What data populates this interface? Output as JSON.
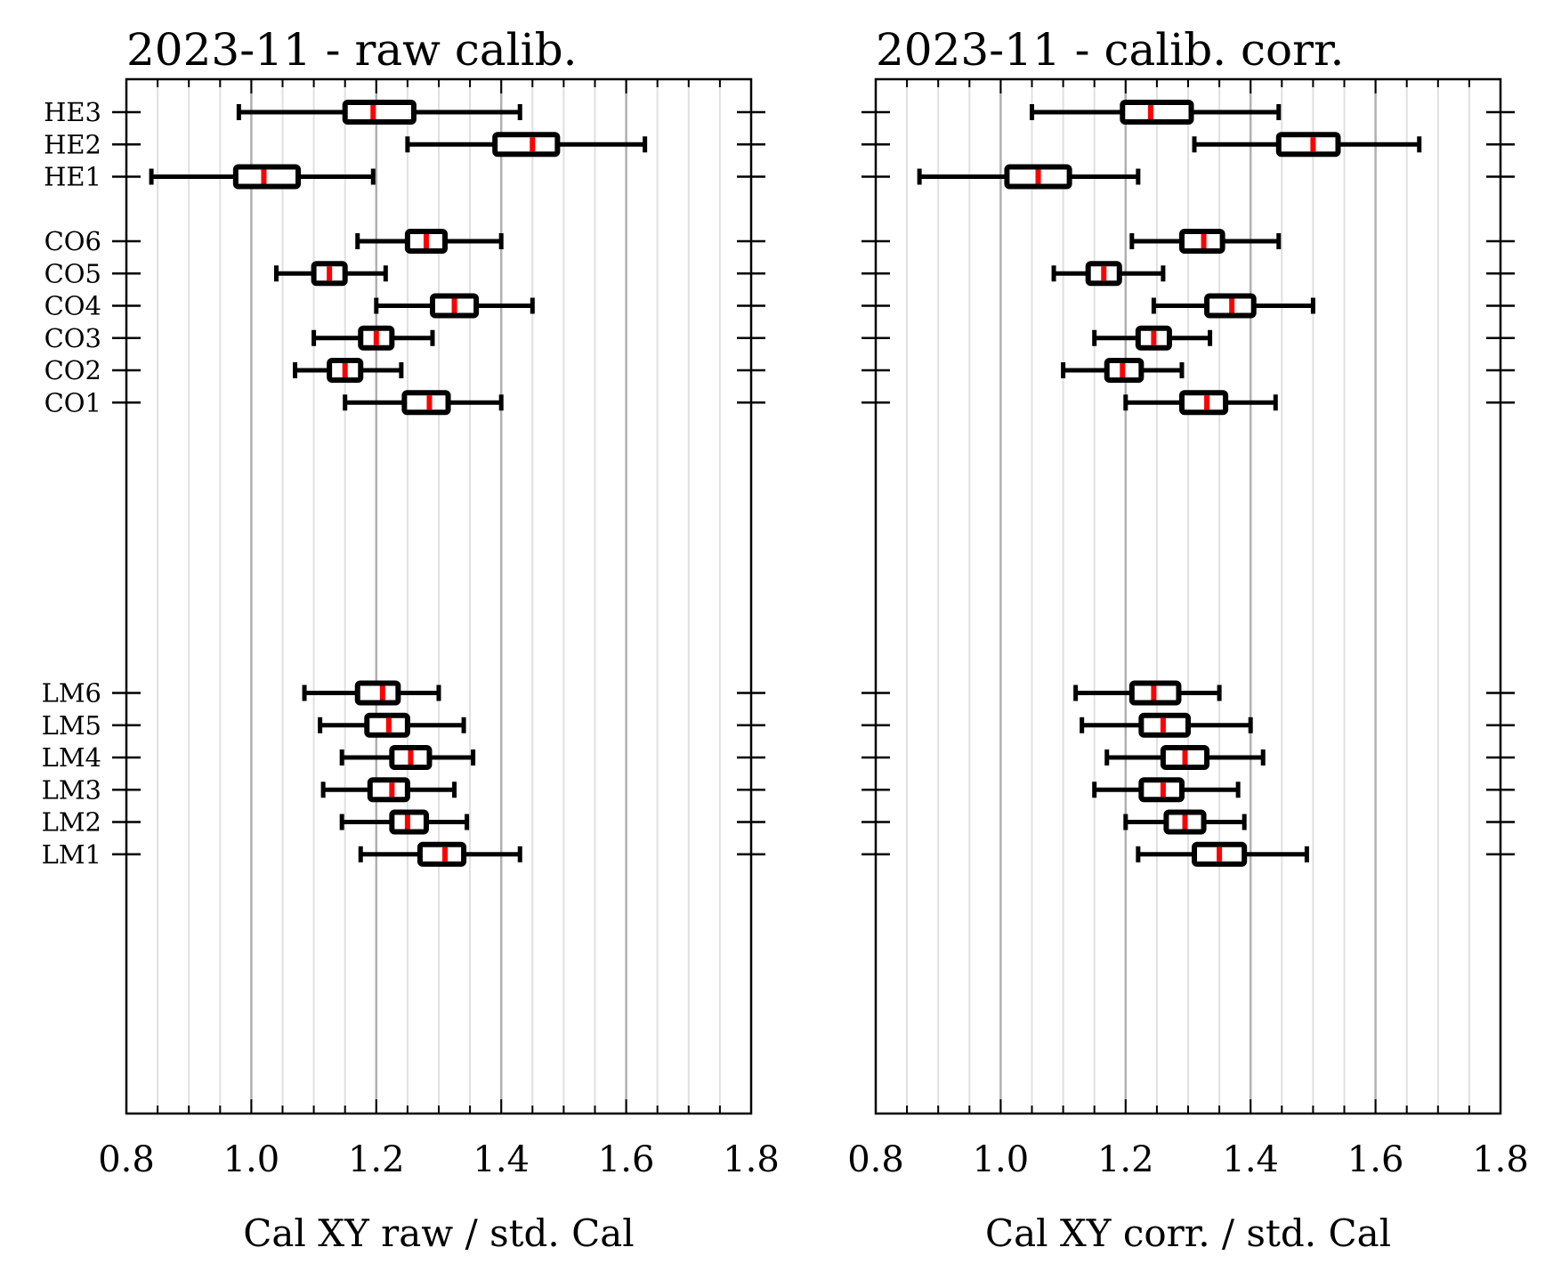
{
  "chart_data": [
    {
      "type": "boxplot",
      "orientation": "horizontal",
      "title": "2023-11 - raw calib.",
      "xlabel": "Cal XY raw / std. Cal",
      "xlim": [
        0.8,
        1.8
      ],
      "xticks": [
        "0.8",
        "1.0",
        "1.2",
        "1.4",
        "1.6",
        "1.8"
      ],
      "grid": true,
      "categories": [
        {
          "label": "HE3",
          "row": 0,
          "whislo": 0.98,
          "q1": 1.15,
          "med": 1.195,
          "q3": 1.26,
          "whishi": 1.43
        },
        {
          "label": "HE2",
          "row": 1,
          "whislo": 1.25,
          "q1": 1.39,
          "med": 1.45,
          "q3": 1.49,
          "whishi": 1.63
        },
        {
          "label": "HE1",
          "row": 2,
          "whislo": 0.84,
          "q1": 0.975,
          "med": 1.02,
          "q3": 1.075,
          "whishi": 1.195
        },
        {
          "label": "CO6",
          "row": 4,
          "whislo": 1.17,
          "q1": 1.25,
          "med": 1.28,
          "q3": 1.31,
          "whishi": 1.4
        },
        {
          "label": "CO5",
          "row": 5,
          "whislo": 1.04,
          "q1": 1.1,
          "med": 1.125,
          "q3": 1.15,
          "whishi": 1.215
        },
        {
          "label": "CO4",
          "row": 6,
          "whislo": 1.2,
          "q1": 1.29,
          "med": 1.325,
          "q3": 1.36,
          "whishi": 1.45
        },
        {
          "label": "CO3",
          "row": 7,
          "whislo": 1.1,
          "q1": 1.175,
          "med": 1.2,
          "q3": 1.225,
          "whishi": 1.29
        },
        {
          "label": "CO2",
          "row": 8,
          "whislo": 1.07,
          "q1": 1.125,
          "med": 1.15,
          "q3": 1.175,
          "whishi": 1.24
        },
        {
          "label": "CO1",
          "row": 9,
          "whislo": 1.15,
          "q1": 1.245,
          "med": 1.285,
          "q3": 1.315,
          "whishi": 1.4
        },
        {
          "label": "LM6",
          "row": 18,
          "whislo": 1.085,
          "q1": 1.17,
          "med": 1.21,
          "q3": 1.235,
          "whishi": 1.3
        },
        {
          "label": "LM5",
          "row": 19,
          "whislo": 1.11,
          "q1": 1.185,
          "med": 1.22,
          "q3": 1.25,
          "whishi": 1.34
        },
        {
          "label": "LM4",
          "row": 20,
          "whislo": 1.145,
          "q1": 1.225,
          "med": 1.255,
          "q3": 1.285,
          "whishi": 1.355
        },
        {
          "label": "LM3",
          "row": 21,
          "whislo": 1.115,
          "q1": 1.19,
          "med": 1.225,
          "q3": 1.25,
          "whishi": 1.325
        },
        {
          "label": "LM2",
          "row": 22,
          "whislo": 1.145,
          "q1": 1.225,
          "med": 1.25,
          "q3": 1.28,
          "whishi": 1.345
        },
        {
          "label": "LM1",
          "row": 23,
          "whislo": 1.175,
          "q1": 1.27,
          "med": 1.31,
          "q3": 1.34,
          "whishi": 1.43
        }
      ]
    },
    {
      "type": "boxplot",
      "orientation": "horizontal",
      "title": "2023-11 - calib. corr.",
      "xlabel": "Cal XY corr. / std. Cal",
      "xlim": [
        0.8,
        1.8
      ],
      "xticks": [
        "0.8",
        "1.0",
        "1.2",
        "1.4",
        "1.6",
        "1.8"
      ],
      "grid": true,
      "categories": [
        {
          "label": "HE3",
          "row": 0,
          "whislo": 1.05,
          "q1": 1.195,
          "med": 1.24,
          "q3": 1.305,
          "whishi": 1.445
        },
        {
          "label": "HE2",
          "row": 1,
          "whislo": 1.31,
          "q1": 1.445,
          "med": 1.5,
          "q3": 1.54,
          "whishi": 1.67
        },
        {
          "label": "HE1",
          "row": 2,
          "whislo": 0.87,
          "q1": 1.01,
          "med": 1.06,
          "q3": 1.11,
          "whishi": 1.22
        },
        {
          "label": "CO6",
          "row": 4,
          "whislo": 1.21,
          "q1": 1.29,
          "med": 1.325,
          "q3": 1.355,
          "whishi": 1.445
        },
        {
          "label": "CO5",
          "row": 5,
          "whislo": 1.085,
          "q1": 1.14,
          "med": 1.165,
          "q3": 1.19,
          "whishi": 1.26
        },
        {
          "label": "CO4",
          "row": 6,
          "whislo": 1.245,
          "q1": 1.33,
          "med": 1.37,
          "q3": 1.405,
          "whishi": 1.5
        },
        {
          "label": "CO3",
          "row": 7,
          "whislo": 1.15,
          "q1": 1.22,
          "med": 1.245,
          "q3": 1.27,
          "whishi": 1.335
        },
        {
          "label": "CO2",
          "row": 8,
          "whislo": 1.1,
          "q1": 1.17,
          "med": 1.195,
          "q3": 1.225,
          "whishi": 1.29
        },
        {
          "label": "CO1",
          "row": 9,
          "whislo": 1.2,
          "q1": 1.29,
          "med": 1.33,
          "q3": 1.36,
          "whishi": 1.44
        },
        {
          "label": "LM6",
          "row": 18,
          "whislo": 1.12,
          "q1": 1.21,
          "med": 1.245,
          "q3": 1.285,
          "whishi": 1.35
        },
        {
          "label": "LM5",
          "row": 19,
          "whislo": 1.13,
          "q1": 1.225,
          "med": 1.26,
          "q3": 1.3,
          "whishi": 1.4
        },
        {
          "label": "LM4",
          "row": 20,
          "whislo": 1.17,
          "q1": 1.26,
          "med": 1.295,
          "q3": 1.33,
          "whishi": 1.42
        },
        {
          "label": "LM3",
          "row": 21,
          "whislo": 1.15,
          "q1": 1.225,
          "med": 1.26,
          "q3": 1.29,
          "whishi": 1.38
        },
        {
          "label": "LM2",
          "row": 22,
          "whislo": 1.2,
          "q1": 1.265,
          "med": 1.295,
          "q3": 1.325,
          "whishi": 1.39
        },
        {
          "label": "LM1",
          "row": 23,
          "whislo": 1.22,
          "q1": 1.31,
          "med": 1.35,
          "q3": 1.39,
          "whishi": 1.49
        }
      ]
    }
  ],
  "style": {
    "box_color": "#000000",
    "median_color": "#ff0000",
    "major_grid_color": "#b0b0b0",
    "minor_grid_color": "#e0e0e0"
  }
}
